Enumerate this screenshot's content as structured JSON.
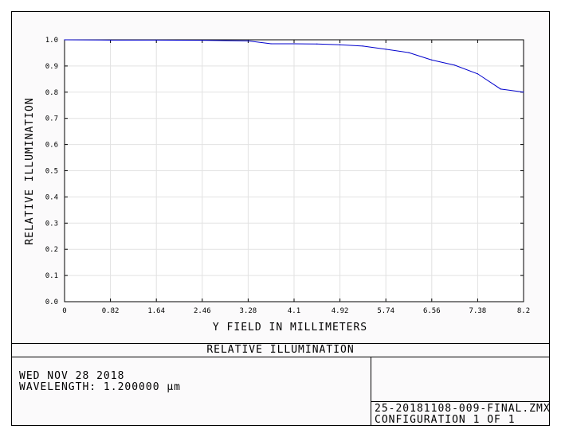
{
  "chart_data": {
    "type": "line",
    "title": "RELATIVE ILLUMINATION",
    "xlabel": "Y FIELD IN MILLIMETERS",
    "ylabel": "RELATIVE ILLUMINATION",
    "xlim": [
      0,
      8.2
    ],
    "ylim": [
      0,
      1.0
    ],
    "x_ticks": [
      "0",
      "0.82",
      "1.64",
      "2.46",
      "3.28",
      "4.1",
      "4.92",
      "5.74",
      "6.56",
      "7.38",
      "8.2"
    ],
    "y_ticks": [
      "0.0",
      "0.1",
      "0.2",
      "0.3",
      "0.4",
      "0.5",
      "0.6",
      "0.7",
      "0.8",
      "0.9",
      "1.0"
    ],
    "grid": true,
    "line_color": "#0000cc",
    "series": [
      {
        "x": [
          0,
          0.82,
          1.64,
          2.46,
          3.28,
          3.69,
          4.1,
          4.51,
          4.92,
          5.33,
          5.74,
          6.15,
          6.56,
          6.97,
          7.38,
          7.79,
          8.2
        ],
        "y": [
          1.0,
          0.999,
          0.999,
          0.998,
          0.996,
          0.985,
          0.985,
          0.984,
          0.981,
          0.976,
          0.964,
          0.951,
          0.923,
          0.903,
          0.87,
          0.812,
          0.8
        ]
      }
    ]
  },
  "footer": {
    "date": "WED NOV 28 2018",
    "wavelength": "WAVELENGTH: 1.200000 µm",
    "file": "25-20181108-009-FINAL.ZMX",
    "config": "CONFIGURATION 1 OF 1"
  }
}
